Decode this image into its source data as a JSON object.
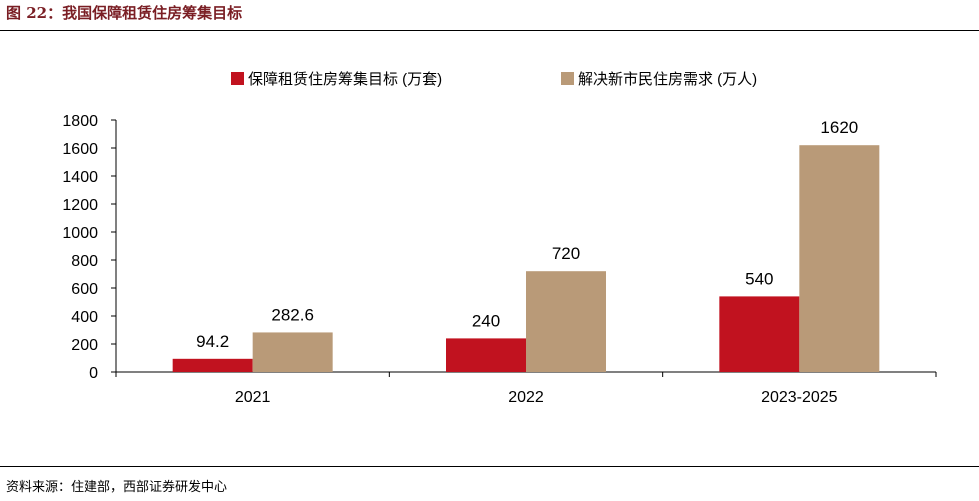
{
  "figure_title": "图 22：我国保障租赁住房筹集目标",
  "source": "资料来源：住建部，西部证券研发中心",
  "colors": {
    "series1": "#c1121f",
    "series2": "#b99a78",
    "title": "#7a1e24"
  },
  "chart_data": {
    "type": "bar",
    "title": "",
    "xlabel": "",
    "ylabel": "",
    "categories": [
      "2021",
      "2022",
      "2023-2025"
    ],
    "series": [
      {
        "name": "保障租赁住房筹集目标 (万套)",
        "values": [
          94.2,
          240,
          540
        ],
        "labels": [
          "94.2",
          "240",
          "540"
        ]
      },
      {
        "name": "解决新市民住房需求 (万人)",
        "values": [
          282.6,
          720,
          1620
        ],
        "labels": [
          "282.6",
          "720",
          "1620"
        ]
      }
    ],
    "ylim": [
      0,
      1800
    ],
    "yticks": [
      0,
      200,
      400,
      600,
      800,
      1000,
      1200,
      1400,
      1600,
      1800
    ],
    "grid": false,
    "legend": "top"
  }
}
